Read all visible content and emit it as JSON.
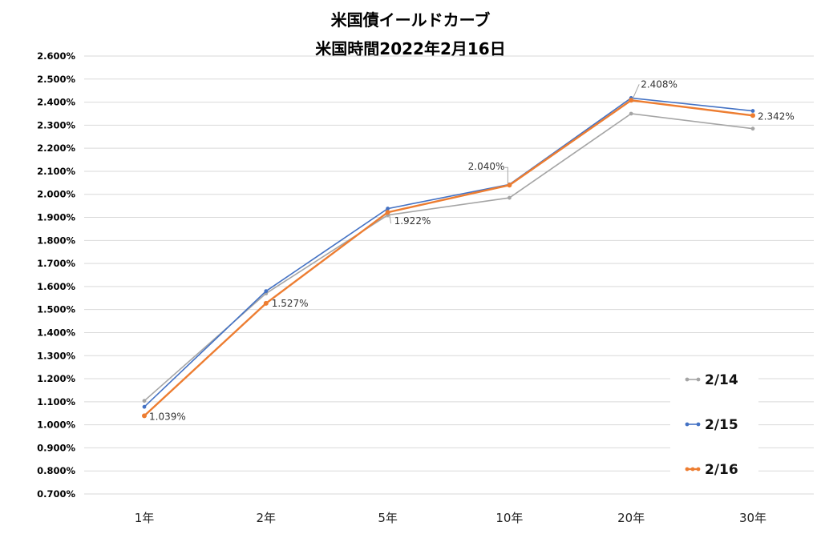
{
  "chart_data": {
    "type": "line",
    "title": "米国債イールドカーブ",
    "subtitle": "米国時間2022年2月16日",
    "categories": [
      "1年",
      "2年",
      "5年",
      "10年",
      "20年",
      "30年"
    ],
    "y_ticks": [
      "0.700%",
      "0.800%",
      "0.900%",
      "1.000%",
      "1.100%",
      "1.200%",
      "1.300%",
      "1.400%",
      "1.500%",
      "1.600%",
      "1.700%",
      "1.800%",
      "1.900%",
      "2.000%",
      "2.100%",
      "2.200%",
      "2.300%",
      "2.400%",
      "2.500%",
      "2.600%"
    ],
    "ylim": [
      0.7,
      2.6
    ],
    "ylabel": "",
    "xlabel": "",
    "grid": true,
    "legend_position": "bottom-right",
    "series": [
      {
        "name": "2/14",
        "color": "#a5a5a5",
        "values": [
          1.104,
          1.57,
          1.91,
          1.985,
          2.35,
          2.285
        ]
      },
      {
        "name": "2/15",
        "color": "#4472c4",
        "values": [
          1.078,
          1.58,
          1.938,
          2.043,
          2.418,
          2.362
        ]
      },
      {
        "name": "2/16",
        "color": "#ed7d31",
        "values": [
          1.039,
          1.527,
          1.922,
          2.04,
          2.408,
          2.342
        ]
      }
    ],
    "data_labels": [
      "1.039%",
      "1.527%",
      "1.922%",
      "2.040%",
      "2.408%",
      "2.342%"
    ]
  }
}
